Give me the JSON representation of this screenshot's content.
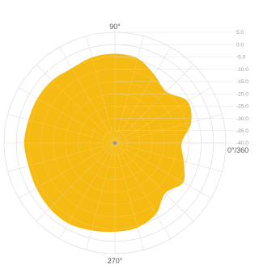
{
  "chart_data": {
    "type": "polar_area",
    "angle_labels": [
      {
        "angle": 90,
        "text": "90°"
      },
      {
        "angle": 0,
        "text": "0°/360"
      },
      {
        "angle": 270,
        "text": "270°"
      }
    ],
    "radial_ticks": [
      "5.0",
      "0.0",
      "-5.0",
      "-10.0",
      "-15.0",
      "-20.0",
      "-25.0",
      "-30.0",
      "-35.0",
      "-40.0"
    ],
    "radial_range": [
      -40,
      5
    ],
    "angular_gridline_step_deg": 15,
    "colors": {
      "fill": "#f5bb13",
      "grid": "#d9d9d9",
      "center": "#999999"
    },
    "series": [
      {
        "angles_deg": [
          0,
          15,
          30,
          45,
          60,
          75,
          90,
          105,
          120,
          135,
          150,
          165,
          180,
          195,
          210,
          225,
          240,
          255,
          270,
          285,
          300,
          315,
          330,
          345
        ],
        "values": [
          -12.9,
          -8.0,
          -6.0,
          -10.5,
          -8.0,
          -4.4,
          -3.7,
          -4.0,
          -4.9,
          -4.0,
          -3.7,
          -3.7,
          -3.2,
          -3.7,
          -3.2,
          -2.5,
          -2.2,
          -3.2,
          -3.9,
          -4.4,
          -6.7,
          -11.1,
          -8.0,
          -11.1
        ]
      }
    ]
  }
}
